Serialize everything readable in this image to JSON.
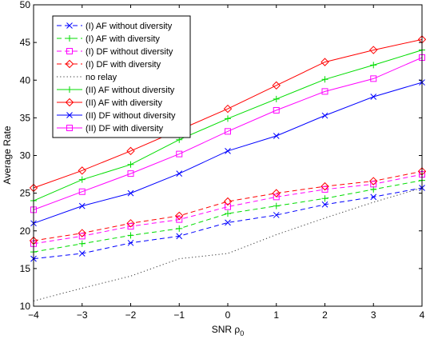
{
  "chart_data": {
    "type": "line",
    "title": "",
    "xlabel": "SNR ρ",
    "xlabel_subscript": "0",
    "ylabel": "Average Rate",
    "x": [
      -4,
      -3,
      -2,
      -1,
      0,
      1,
      2,
      3,
      4
    ],
    "xlim": [
      -4,
      4
    ],
    "ylim": [
      10,
      50
    ],
    "xticks": [
      "−4",
      "−3",
      "−2",
      "−1",
      "0",
      "1",
      "2",
      "3",
      "4"
    ],
    "yticks": [
      "10",
      "15",
      "20",
      "25",
      "30",
      "35",
      "40",
      "45",
      "50"
    ],
    "grid": false,
    "legend_position": "top-left",
    "series": [
      {
        "name": "(I) AF without diversity",
        "color": "#0000ff",
        "linestyle": "dashed",
        "marker": "x",
        "values": [
          16.3,
          17.0,
          18.4,
          19.3,
          21.1,
          22.1,
          23.5,
          24.5,
          25.7
        ]
      },
      {
        "name": "(I) AF with diversity",
        "color": "#00dd00",
        "linestyle": "dashed",
        "marker": "plus",
        "values": [
          17.2,
          18.3,
          19.4,
          20.3,
          22.3,
          23.3,
          24.3,
          25.5,
          26.7
        ]
      },
      {
        "name": "(I) DF without diversity",
        "color": "#ff00ff",
        "linestyle": "dashed",
        "marker": "square",
        "values": [
          18.3,
          19.3,
          20.6,
          21.5,
          23.2,
          24.5,
          25.5,
          26.2,
          27.5
        ]
      },
      {
        "name": "(I) DF with diversity",
        "color": "#ff0000",
        "linestyle": "dashed",
        "marker": "diamond",
        "values": [
          18.7,
          19.7,
          21.0,
          22.0,
          23.9,
          25.0,
          25.9,
          26.6,
          27.9
        ]
      },
      {
        "name": "no relay",
        "color": "#333333",
        "linestyle": "dotted",
        "marker": "none",
        "values": [
          10.7,
          12.4,
          14.0,
          16.3,
          17.0,
          19.5,
          21.7,
          23.8,
          25.7
        ]
      },
      {
        "name": "(II) AF without diversity",
        "color": "#00dd00",
        "linestyle": "solid",
        "marker": "plus",
        "values": [
          24.0,
          26.8,
          28.8,
          32.1,
          34.9,
          37.5,
          40.1,
          42.0,
          44.0
        ]
      },
      {
        "name": "(II) AF with diversity",
        "color": "#ff0000",
        "linestyle": "solid",
        "marker": "diamond",
        "values": [
          25.7,
          28.0,
          30.6,
          33.4,
          36.2,
          39.3,
          42.4,
          44.0,
          45.4
        ]
      },
      {
        "name": "(II) DF without diversity",
        "color": "#0000ff",
        "linestyle": "solid",
        "marker": "x",
        "values": [
          21.0,
          23.3,
          25.0,
          27.6,
          30.6,
          32.6,
          35.3,
          37.8,
          39.7
        ]
      },
      {
        "name": "(II) DF with diversity",
        "color": "#ff00ff",
        "linestyle": "solid",
        "marker": "square",
        "values": [
          22.8,
          25.2,
          27.6,
          30.2,
          33.2,
          36.0,
          38.5,
          40.2,
          43.0
        ]
      }
    ]
  }
}
